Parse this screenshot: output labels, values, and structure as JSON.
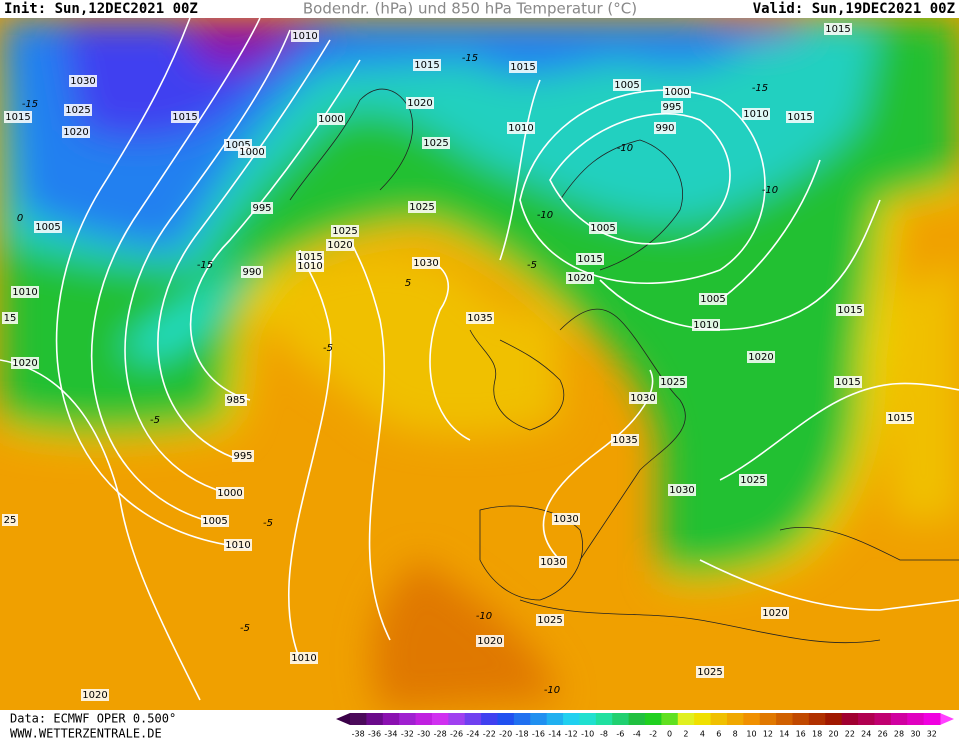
{
  "header": {
    "init": "Init: Sun,12DEC2021 00Z",
    "title": "Bodendr. (hPa) und 850 hPa Temperatur (°C)",
    "valid": "Valid: Sun,19DEC2021 00Z"
  },
  "footer": {
    "data": "Data: ECMWF OPER 0.500°",
    "site": "WWW.WETTERZENTRALE.DE"
  },
  "map": {
    "isobar_labels": [
      1010,
      1030,
      1025,
      1015,
      1020,
      1015,
      1005,
      1000,
      995,
      990,
      1000,
      1015,
      1020,
      1025,
      1025,
      1025,
      1020,
      1015,
      1010,
      1030,
      1035,
      1010,
      1015,
      1005,
      1000,
      995,
      990,
      1015,
      1010,
      1015,
      1005,
      1015,
      1020,
      1005,
      1010,
      1015,
      1020,
      1015,
      1015,
      1025,
      1030,
      1035,
      1025,
      1030,
      1030,
      1030,
      1025,
      1020,
      1025,
      1020,
      1010,
      1020,
      1005,
      1010,
      15,
      1020,
      985,
      995,
      1000,
      1005,
      1010,
      25
    ],
    "temperature_labels": [
      -15,
      -15,
      -15,
      -10,
      -10,
      -10,
      -15,
      -5,
      -5,
      5,
      -5,
      0,
      -10,
      -10,
      -5,
      -5
    ]
  },
  "colorbar": {
    "labels": [
      -38,
      -36,
      -34,
      -32,
      -30,
      -28,
      -26,
      -24,
      -22,
      -20,
      -18,
      -16,
      -14,
      -12,
      -10,
      -8,
      -6,
      -4,
      -2,
      0,
      2,
      4,
      6,
      8,
      10,
      12,
      14,
      16,
      18,
      20,
      22,
      24,
      26,
      28,
      30,
      32
    ],
    "colors": [
      "#4b0a5a",
      "#6a0a8a",
      "#8a10b0",
      "#a020d0",
      "#c020e0",
      "#d030f0",
      "#a040f0",
      "#7040f0",
      "#4040f0",
      "#2050f0",
      "#2070f0",
      "#2090f0",
      "#20b0f0",
      "#20d0f0",
      "#20e0d0",
      "#20e0a0",
      "#20d070",
      "#20c040",
      "#20d020",
      "#60e020",
      "#e0f020",
      "#f0e000",
      "#f0c000",
      "#f0a800",
      "#f09000",
      "#e07800",
      "#d06000",
      "#c04800",
      "#b03000",
      "#a01800",
      "#a00030",
      "#b00050",
      "#c00070",
      "#d000a0",
      "#e000c0",
      "#f000e0"
    ]
  }
}
